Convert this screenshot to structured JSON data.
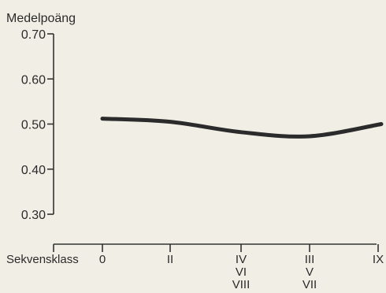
{
  "chart_data": {
    "type": "line",
    "ylabel": "Medelpoäng",
    "xlabel": "Sekvensklass",
    "ylim": [
      0.3,
      0.7
    ],
    "y_ticks": [
      "0.70",
      "0.60",
      "0.50",
      "0.40",
      "0.30"
    ],
    "categories": [
      [
        "0"
      ],
      [
        "II"
      ],
      [
        "IV",
        "VI",
        "VIII"
      ],
      [
        "III",
        "V",
        "VII"
      ],
      [
        "IX"
      ]
    ],
    "series": [
      {
        "values": [
          0.512,
          0.505,
          0.482,
          0.473,
          0.5
        ]
      }
    ],
    "grid": false,
    "colors": {
      "line": "#2b2b2b",
      "axis": "#333333",
      "background": "#f1eee6"
    }
  }
}
